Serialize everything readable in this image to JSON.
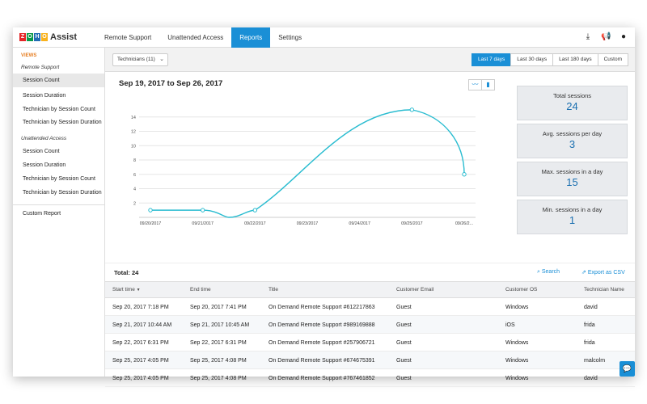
{
  "app": {
    "brand_tiles": [
      "Z",
      "O",
      "H",
      "O"
    ],
    "brand_tile_colors": [
      "#e42527",
      "#089949",
      "#226db4",
      "#f9b21d"
    ],
    "brand_name": "Assist"
  },
  "nav": {
    "tabs": [
      {
        "label": "Remote Support",
        "active": false
      },
      {
        "label": "Unattended Access",
        "active": false
      },
      {
        "label": "Reports",
        "active": true
      },
      {
        "label": "Settings",
        "active": false
      }
    ],
    "icons": [
      "download-icon",
      "megaphone-icon",
      "user-icon"
    ]
  },
  "sidebar": {
    "views_label": "VIEWS",
    "groups": [
      {
        "title": "Remote Support",
        "items": [
          "Session Count",
          "Session Duration",
          "Technician by Session Count",
          "Technician by Session Duration"
        ]
      },
      {
        "title": "Unattended Access",
        "items": [
          "Session Count",
          "Session Duration",
          "Technician by Session Count",
          "Technician by Session Duration"
        ]
      }
    ],
    "custom_report": "Custom Report"
  },
  "filters": {
    "technicians": "Technicians (11)",
    "ranges": [
      "Last 7 days",
      "Last 30 days",
      "Last 180 days",
      "Custom"
    ],
    "active_range": "Last 7 days"
  },
  "chart_header": {
    "date_range": "Sep 19, 2017 to Sep 26, 2017",
    "toggle_icons": [
      "line-chart-icon",
      "bar-chart-icon"
    ]
  },
  "chart_data": {
    "type": "line",
    "x": [
      "09/20/2017",
      "09/21/2017",
      "09/22/2017",
      "09/23/2017",
      "09/24/2017",
      "09/25/2017",
      "09/26/2..."
    ],
    "series": [
      {
        "values": [
          1,
          1,
          1,
          null,
          null,
          15,
          6
        ]
      }
    ],
    "yticks": [
      2,
      4,
      6,
      8,
      10,
      12,
      14
    ],
    "ylim": [
      0,
      16
    ],
    "grid": true,
    "color": "#29bcd0"
  },
  "stats": [
    {
      "label": "Total sessions",
      "value": "24"
    },
    {
      "label": "Avg. sessions per day",
      "value": "3"
    },
    {
      "label": "Max. sessions in a day",
      "value": "15"
    },
    {
      "label": "Min. sessions in a day",
      "value": "1"
    }
  ],
  "table": {
    "total": "Total: 24",
    "search": "Search",
    "export": "Export as CSV",
    "columns": [
      "Start time",
      "End time",
      "Title",
      "Customer Email",
      "Customer OS",
      "Technician Name"
    ],
    "sort_indicator": "▼",
    "rows": [
      [
        "Sep 20, 2017 7:18 PM",
        "Sep 20, 2017 7:41 PM",
        "On Demand Remote Support #612217863",
        "Guest",
        "Windows",
        "david"
      ],
      [
        "Sep 21, 2017 10:44 AM",
        "Sep 21, 2017 10:45 AM",
        "On Demand Remote Support #989169888",
        "Guest",
        "iOS",
        "frida"
      ],
      [
        "Sep 22, 2017 6:31 PM",
        "Sep 22, 2017 6:31 PM",
        "On Demand Remote Support #257906721",
        "Guest",
        "Windows",
        "frida"
      ],
      [
        "Sep 25, 2017 4:05 PM",
        "Sep 25, 2017 4:08 PM",
        "On Demand Remote Support #674675391",
        "Guest",
        "Windows",
        "malcolm"
      ],
      [
        "Sep 25, 2017 4:05 PM",
        "Sep 25, 2017 4:08 PM",
        "On Demand Remote Support #767461852",
        "Guest",
        "Windows",
        "david"
      ]
    ]
  },
  "colors": {
    "accent": "#1a8fd6",
    "views": "#e67e22"
  }
}
